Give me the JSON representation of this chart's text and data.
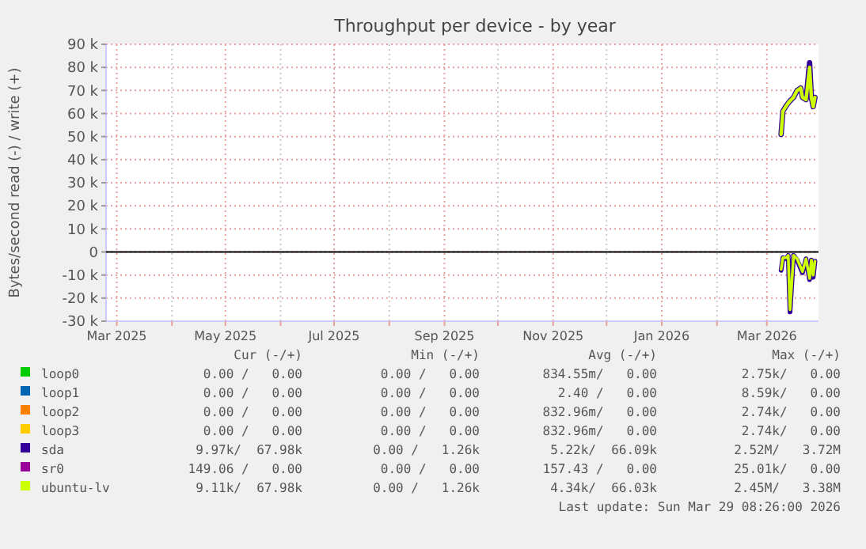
{
  "chart_data": {
    "type": "line",
    "title": "Throughput per device - by year",
    "ylabel": "Bytes/second read (-) / write (+)",
    "xlim": [
      "2025-02-23",
      "2026-03-30"
    ],
    "xticks": [
      {
        "value": "2025-03-01",
        "label": "Mar 2025"
      },
      {
        "value": "2025-04-01",
        "label": null
      },
      {
        "value": "2025-05-01",
        "label": "May 2025"
      },
      {
        "value": "2025-06-01",
        "label": null
      },
      {
        "value": "2025-07-01",
        "label": "Jul 2025"
      },
      {
        "value": "2025-08-01",
        "label": null
      },
      {
        "value": "2025-09-01",
        "label": "Sep 2025"
      },
      {
        "value": "2025-10-01",
        "label": null
      },
      {
        "value": "2025-11-01",
        "label": "Nov 2025"
      },
      {
        "value": "2025-12-01",
        "label": null
      },
      {
        "value": "2026-01-01",
        "label": "Jan 2026"
      },
      {
        "value": "2026-02-01",
        "label": null
      },
      {
        "value": "2026-03-01",
        "label": "Mar 2026"
      }
    ],
    "ylim": [
      -30000,
      90000
    ],
    "yticks": [
      {
        "value": -30000,
        "label": "-30 k"
      },
      {
        "value": -20000,
        "label": "-20 k"
      },
      {
        "value": -10000,
        "label": "-10 k"
      },
      0,
      {
        "value": 10000,
        "label": "10 k"
      },
      {
        "value": 20000,
        "label": "20 k"
      },
      {
        "value": 30000,
        "label": "30 k"
      },
      {
        "value": 40000,
        "label": "40 k"
      },
      {
        "value": 50000,
        "label": "50 k"
      },
      {
        "value": 60000,
        "label": "60 k"
      },
      {
        "value": 70000,
        "label": "70 k"
      },
      {
        "value": 80000,
        "label": "80 k"
      },
      {
        "value": 90000,
        "label": "90 k"
      }
    ],
    "grid": true,
    "legend": "bottom",
    "marker": "none",
    "line_style": "solid",
    "series": [
      {
        "name": "loop0",
        "color": "#00cc00"
      },
      {
        "name": "loop1",
        "color": "#0066b3"
      },
      {
        "name": "loop2",
        "color": "#ff8000"
      },
      {
        "name": "loop3",
        "color": "#ffcc00"
      },
      {
        "name": "sda",
        "color": "#330099",
        "x": [
          "2026-03-09",
          "2026-03-10",
          "2026-03-12",
          "2026-03-14",
          "2026-03-16",
          "2026-03-18",
          "2026-03-20",
          "2026-03-21",
          "2026-03-23",
          "2026-03-25",
          "2026-03-26",
          "2026-03-27",
          "2026-03-28"
        ],
        "values": [
          51000,
          61000,
          63500,
          65500,
          67000,
          70000,
          71000,
          67000,
          66000,
          82000,
          67000,
          63000,
          67000
        ]
      },
      {
        "color": "#330099",
        "x": [
          "2026-03-09",
          "2026-03-10",
          "2026-03-12",
          "2026-03-13",
          "2026-03-14",
          "2026-03-16",
          "2026-03-18",
          "2026-03-21",
          "2026-03-23",
          "2026-03-25",
          "2026-03-26",
          "2026-03-27",
          "2026-03-28"
        ],
        "values": [
          -8000,
          -2500,
          -3000,
          -1500,
          -26000,
          -1500,
          -3500,
          -9000,
          -3000,
          -12000,
          -3500,
          -11000,
          -4000
        ]
      },
      {
        "name": "sr0",
        "color": "#990099"
      },
      {
        "name": "ubuntu-lv",
        "color": "#ccff00",
        "x": [
          "2026-03-09",
          "2026-03-10",
          "2026-03-12",
          "2026-03-14",
          "2026-03-16",
          "2026-03-18",
          "2026-03-20",
          "2026-03-21",
          "2026-03-23",
          "2026-03-25",
          "2026-03-26",
          "2026-03-27",
          "2026-03-28"
        ],
        "values": [
          51000,
          61000,
          63500,
          65500,
          67000,
          70000,
          71000,
          67000,
          66000,
          80000,
          67000,
          63000,
          67000
        ]
      },
      {
        "color": "#ccff00",
        "x": [
          "2026-03-09",
          "2026-03-10",
          "2026-03-12",
          "2026-03-13",
          "2026-03-14",
          "2026-03-16",
          "2026-03-18",
          "2026-03-21",
          "2026-03-23",
          "2026-03-25",
          "2026-03-26",
          "2026-03-27",
          "2026-03-28"
        ],
        "values": [
          -7500,
          -2500,
          -2500,
          -1500,
          -25000,
          -1500,
          -3000,
          -8500,
          -3000,
          -11500,
          -3500,
          -10000,
          -4000
        ]
      }
    ],
    "annotations": [
      "Cur (-/+)",
      "Min (-/+)",
      "Avg (-/+)",
      "Max (-/+)",
      "0.00 /   0.00",
      "0.00 /   0.00",
      "834.55m/   0.00",
      "2.75k/   0.00",
      "0.00 /   0.00",
      "0.00 /   0.00",
      "2.40 /   0.00",
      "8.59k/   0.00",
      "0.00 /   0.00",
      "0.00 /   0.00",
      "832.96m/   0.00",
      "2.74k/   0.00",
      "0.00 /   0.00",
      "0.00 /   0.00",
      "832.96m/   0.00",
      "2.74k/   0.00",
      "9.97k/  67.98k",
      "0.00 /   1.26k",
      "5.22k/  66.09k",
      "2.52M/   3.72M",
      "149.06 /   0.00",
      "0.00 /   0.00",
      "157.43 /   0.00",
      "25.01k/   0.00",
      "9.11k/  67.98k",
      "0.00 /   1.26k",
      "4.34k/  66.03k",
      "2.45M/   3.38M",
      "Last update: Sun Mar 29 08:26:00 2026"
    ]
  }
}
